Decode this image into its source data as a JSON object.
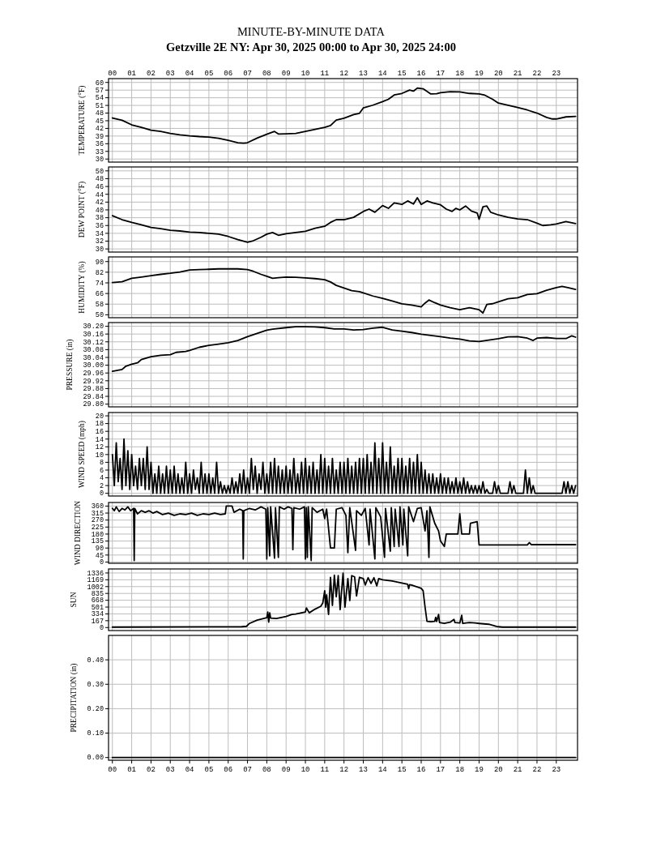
{
  "chart_data": [
    {
      "type": "line",
      "title": "MINUTE-BY-MINUTE DATA",
      "subtitle": "Getzville 2E NY: Apr 30, 2025 00:00 to Apr 30, 2025 24:00",
      "ylabel": "TEMPERATURE (°F)",
      "x": [
        0,
        0.5,
        1,
        1.5,
        2,
        2.5,
        3,
        3.5,
        4,
        4.5,
        5,
        5.5,
        6,
        6.5,
        6.8,
        7,
        7.5,
        8,
        8.4,
        8.6,
        9,
        9.5,
        10,
        10.5,
        11,
        11.3,
        11.6,
        12,
        12.5,
        12.8,
        13,
        13.5,
        14,
        14.3,
        14.6,
        15,
        15.4,
        15.6,
        15.8,
        16.1,
        16.5,
        16.8,
        17,
        17.5,
        18,
        18.5,
        19,
        19.3,
        19.7,
        20,
        20.5,
        21,
        21.5,
        22,
        22.5,
        22.8,
        23,
        23.5,
        24
      ],
      "series": [
        {
          "color": "#000000",
          "values": [
            46.1,
            45.2,
            43.4,
            42.4,
            41.3,
            40.8,
            40.0,
            39.5,
            39.1,
            38.8,
            38.6,
            38.1,
            37.3,
            36.4,
            36.2,
            36.4,
            38.2,
            39.7,
            40.8,
            39.8,
            39.9,
            40.0,
            40.8,
            41.6,
            42.4,
            43.1,
            45.3,
            46.0,
            47.4,
            47.9,
            50.0,
            51.1,
            52.5,
            53.4,
            55.1,
            55.7,
            57.0,
            56.6,
            57.8,
            57.5,
            55.5,
            55.6,
            56.0,
            56.4,
            56.3,
            55.7,
            55.5,
            55.0,
            53.4,
            51.9,
            51.1,
            50.2,
            49.2,
            48.0,
            46.3,
            45.7,
            45.7,
            46.5,
            46.7
          ]
        }
      ],
      "xlim": [
        -0.2,
        24.1
      ],
      "xticks": [
        0,
        1,
        2,
        3,
        4,
        5,
        6,
        7,
        8,
        9,
        10,
        11,
        12,
        13,
        14,
        15,
        16,
        17,
        18,
        19,
        20,
        21,
        22,
        23
      ],
      "x2lim": [
        -0.2,
        24.1
      ],
      "x2ticks": [
        {
          "value": 0,
          "label": "00"
        },
        {
          "value": 1,
          "label": "01"
        },
        {
          "value": 2,
          "label": "02"
        },
        {
          "value": 3,
          "label": "03"
        },
        {
          "value": 4,
          "label": "04"
        },
        {
          "value": 5,
          "label": "05"
        },
        {
          "value": 6,
          "label": "06"
        },
        {
          "value": 7,
          "label": "07"
        },
        {
          "value": 8,
          "label": "08"
        },
        {
          "value": 9,
          "label": "09"
        },
        {
          "value": 10,
          "label": "10"
        },
        {
          "value": 11,
          "label": "11"
        },
        {
          "value": 12,
          "label": "12"
        },
        {
          "value": 13,
          "label": "13"
        },
        {
          "value": 14,
          "label": "14"
        },
        {
          "value": 15,
          "label": "15"
        },
        {
          "value": 16,
          "label": "16"
        },
        {
          "value": 17,
          "label": "17"
        },
        {
          "value": 18,
          "label": "18"
        },
        {
          "value": 19,
          "label": "19"
        },
        {
          "value": 20,
          "label": "20"
        },
        {
          "value": 21,
          "label": "21"
        },
        {
          "value": 22,
          "label": "22"
        },
        {
          "value": 23,
          "label": "23"
        }
      ],
      "ylim": [
        28.8,
        61.5
      ],
      "yticks": [
        30,
        33,
        36,
        39,
        42,
        45,
        48,
        51,
        54,
        57,
        60
      ],
      "grid": true,
      "tick_labels": "y"
    },
    {
      "type": "line",
      "ylabel": "DEW POINT (°F)",
      "x": [
        0,
        0.5,
        1,
        1.5,
        2,
        2.5,
        3,
        3.5,
        4,
        4.5,
        5,
        5.5,
        6,
        6.5,
        7,
        7.3,
        7.7,
        8,
        8.3,
        8.6,
        9,
        9.5,
        10,
        10.5,
        11,
        11.3,
        11.6,
        12,
        12.5,
        13,
        13.3,
        13.6,
        14,
        14.3,
        14.6,
        15,
        15.3,
        15.6,
        15.8,
        16,
        16.3,
        16.6,
        17,
        17.3,
        17.6,
        17.8,
        18,
        18.3,
        18.6,
        18.9,
        19,
        19.2,
        19.4,
        19.6,
        20,
        20.5,
        21,
        21.5,
        22,
        22.3,
        22.7,
        23,
        23.5,
        24
      ],
      "series": [
        {
          "color": "#000000",
          "values": [
            38.5,
            37.5,
            36.8,
            36.2,
            35.5,
            35.2,
            34.8,
            34.6,
            34.3,
            34.2,
            34.0,
            33.8,
            33.2,
            32.4,
            31.7,
            32.1,
            33.0,
            33.8,
            34.2,
            33.5,
            33.9,
            34.2,
            34.5,
            35.3,
            35.8,
            36.8,
            37.5,
            37.5,
            38.1,
            39.6,
            40.2,
            39.4,
            41.1,
            40.4,
            41.8,
            41.4,
            42.3,
            41.5,
            43.1,
            41.4,
            42.3,
            41.8,
            41.3,
            40.2,
            39.6,
            40.4,
            40.0,
            41.0,
            39.7,
            39.2,
            37.6,
            40.8,
            41.0,
            39.4,
            38.7,
            38.1,
            37.7,
            37.5,
            36.6,
            36.0,
            36.2,
            36.4,
            37.0,
            36.5
          ]
        }
      ],
      "xlim": [
        -0.2,
        24.1
      ],
      "xticks": [
        0,
        1,
        2,
        3,
        4,
        5,
        6,
        7,
        8,
        9,
        10,
        11,
        12,
        13,
        14,
        15,
        16,
        17,
        18,
        19,
        20,
        21,
        22,
        23
      ],
      "ylim": [
        29.2,
        51
      ],
      "yticks": [
        30,
        32,
        34,
        36,
        38,
        40,
        42,
        44,
        46,
        48,
        50
      ],
      "grid": true,
      "tick_labels": "y"
    },
    {
      "type": "line",
      "ylabel": "HUMIDITY (%)",
      "x": [
        0,
        0.5,
        1,
        1.5,
        2,
        2.5,
        3,
        3.5,
        4,
        4.5,
        5,
        5.5,
        6,
        6.5,
        7,
        7.3,
        7.7,
        8,
        8.3,
        8.6,
        9,
        9.5,
        10,
        10.5,
        11,
        11.3,
        11.6,
        12,
        12.4,
        12.8,
        13,
        13.5,
        14,
        14.5,
        15,
        15.5,
        16,
        16.2,
        16.4,
        16.7,
        17,
        17.5,
        18,
        18.5,
        19,
        19.2,
        19.4,
        19.7,
        20,
        20.5,
        21,
        21.5,
        22,
        22.5,
        23,
        23.3,
        23.6,
        24
      ],
      "series": [
        {
          "color": "#000000",
          "values": [
            74.2,
            74.9,
            77.4,
            78.4,
            79.4,
            80.4,
            81.2,
            82.2,
            83.7,
            84.0,
            84.2,
            84.5,
            84.5,
            84.5,
            84.0,
            82.7,
            80.4,
            78.9,
            77.4,
            77.9,
            78.4,
            78.2,
            77.7,
            77.2,
            76.4,
            74.7,
            72.1,
            70.1,
            68.1,
            67.4,
            66.4,
            64.1,
            62.3,
            60.3,
            58.3,
            57.3,
            56.0,
            58.8,
            61.1,
            59.1,
            57.3,
            55.3,
            53.8,
            55.3,
            53.8,
            51.3,
            57.8,
            58.3,
            59.8,
            62.1,
            62.8,
            65.3,
            65.8,
            68.4,
            70.4,
            71.4,
            70.4,
            69.1
          ]
        }
      ],
      "xlim": [
        -0.2,
        24.1
      ],
      "xticks": [
        0,
        1,
        2,
        3,
        4,
        5,
        6,
        7,
        8,
        9,
        10,
        11,
        12,
        13,
        14,
        15,
        16,
        17,
        18,
        19,
        20,
        21,
        22,
        23
      ],
      "ylim": [
        47.8,
        93.5
      ],
      "yticks": [
        50,
        58,
        66,
        74,
        82,
        90
      ],
      "grid": true,
      "tick_labels": "y"
    },
    {
      "type": "line",
      "ylabel": "PRESSURE (in)",
      "x": [
        0,
        0.5,
        0.7,
        1,
        1.3,
        1.5,
        2,
        2.5,
        3,
        3.3,
        3.8,
        4,
        4.5,
        5,
        5.5,
        6,
        6.5,
        7,
        7.5,
        8,
        8.3,
        9,
        9.5,
        10,
        10.5,
        11,
        11.5,
        12,
        12.5,
        13,
        13.5,
        14,
        14.5,
        15,
        15.5,
        16,
        16.5,
        17,
        17.5,
        18,
        18.5,
        19,
        19.5,
        20,
        20.5,
        21,
        21.5,
        21.8,
        22,
        22.5,
        23,
        23.5,
        23.8,
        24
      ],
      "series": [
        {
          "color": "#000000",
          "values": [
            29.969,
            29.978,
            29.995,
            30.005,
            30.012,
            30.029,
            30.044,
            30.051,
            30.054,
            30.066,
            30.071,
            30.076,
            30.092,
            30.102,
            30.108,
            30.115,
            30.127,
            30.147,
            30.163,
            30.18,
            30.185,
            30.193,
            30.198,
            30.198,
            30.197,
            30.193,
            30.186,
            30.186,
            30.181,
            30.183,
            30.19,
            30.195,
            30.181,
            30.175,
            30.168,
            30.159,
            30.153,
            30.147,
            30.139,
            30.134,
            30.125,
            30.122,
            30.129,
            30.136,
            30.146,
            30.147,
            30.139,
            30.127,
            30.139,
            30.142,
            30.137,
            30.137,
            30.151,
            30.144
          ]
        }
      ],
      "xlim": [
        -0.2,
        24.1
      ],
      "xticks": [
        0,
        1,
        2,
        3,
        4,
        5,
        6,
        7,
        8,
        9,
        10,
        11,
        12,
        13,
        14,
        15,
        16,
        17,
        18,
        19,
        20,
        21,
        22,
        23
      ],
      "ylim": [
        29.786,
        30.219
      ],
      "yticks": [
        {
          "value": 29.8,
          "label": "29.80"
        },
        {
          "value": 29.84,
          "label": "29.84"
        },
        {
          "value": 29.88,
          "label": "29.88"
        },
        {
          "value": 29.92,
          "label": "29.92"
        },
        {
          "value": 29.96,
          "label": "29.96"
        },
        {
          "value": 30,
          "label": "30.00"
        },
        {
          "value": 30.04,
          "label": "30.04"
        },
        {
          "value": 30.08,
          "label": "30.08"
        },
        {
          "value": 30.12,
          "label": "30.12"
        },
        {
          "value": 30.16,
          "label": "30.16"
        },
        {
          "value": 30.2,
          "label": "30.20"
        }
      ],
      "grid": true,
      "tick_labels": "y"
    },
    {
      "type": "line",
      "ylabel": "WIND SPEED (mph)",
      "x": [
        0,
        0.1,
        0.2,
        0.3,
        0.4,
        0.5,
        0.6,
        0.7,
        0.8,
        0.9,
        1,
        1.1,
        1.2,
        1.3,
        1.4,
        1.5,
        1.6,
        1.7,
        1.8,
        1.9,
        2,
        2.1,
        2.2,
        2.3,
        2.4,
        2.5,
        2.6,
        2.7,
        2.8,
        2.9,
        3,
        3.1,
        3.2,
        3.3,
        3.4,
        3.5,
        3.6,
        3.7,
        3.8,
        3.9,
        4,
        4.1,
        4.2,
        4.3,
        4.4,
        4.5,
        4.6,
        4.7,
        4.8,
        4.9,
        5,
        5.1,
        5.2,
        5.3,
        5.4,
        5.5,
        5.6,
        5.7,
        5.8,
        5.9,
        6,
        6.1,
        6.2,
        6.3,
        6.4,
        6.5,
        6.6,
        6.7,
        6.8,
        6.9,
        7,
        7.1,
        7.2,
        7.3,
        7.4,
        7.5,
        7.6,
        7.7,
        7.8,
        7.9,
        8,
        8.1,
        8.2,
        8.3,
        8.4,
        8.5,
        8.6,
        8.7,
        8.8,
        8.9,
        9,
        9.1,
        9.2,
        9.3,
        9.4,
        9.5,
        9.6,
        9.7,
        9.8,
        9.9,
        10,
        10.1,
        10.2,
        10.3,
        10.4,
        10.5,
        10.6,
        10.7,
        10.8,
        10.9,
        11,
        11.1,
        11.2,
        11.3,
        11.4,
        11.5,
        11.6,
        11.7,
        11.8,
        11.9,
        12,
        12.1,
        12.2,
        12.3,
        12.4,
        12.5,
        12.6,
        12.7,
        12.8,
        12.9,
        13,
        13.1,
        13.2,
        13.3,
        13.4,
        13.5,
        13.6,
        13.7,
        13.8,
        13.9,
        14,
        14.1,
        14.2,
        14.3,
        14.4,
        14.5,
        14.6,
        14.7,
        14.8,
        14.9,
        15,
        15.1,
        15.2,
        15.3,
        15.4,
        15.5,
        15.6,
        15.7,
        15.8,
        15.9,
        16,
        16.1,
        16.2,
        16.3,
        16.4,
        16.5,
        16.6,
        16.7,
        16.8,
        16.9,
        17,
        17.1,
        17.2,
        17.3,
        17.4,
        17.5,
        17.6,
        17.7,
        17.8,
        17.9,
        18,
        18.1,
        18.2,
        18.3,
        18.4,
        18.5,
        18.6,
        18.7,
        18.8,
        18.9,
        19,
        19.1,
        19.2,
        19.3,
        19.4,
        19.5,
        19.6,
        19.7,
        19.8,
        19.9,
        20,
        20.1,
        20.2,
        20.3,
        20.4,
        20.5,
        20.6,
        20.7,
        20.8,
        20.9,
        21,
        21.1,
        21.2,
        21.3,
        21.4,
        21.5,
        21.6,
        21.7,
        21.8,
        21.9,
        22,
        22.1,
        22.2,
        22.3,
        22.4,
        22.5,
        22.6,
        22.7,
        22.8,
        22.9,
        23,
        23.1,
        23.2,
        23.3,
        23.4,
        23.5,
        23.6,
        23.7,
        23.8,
        23.9,
        24
      ],
      "series": [
        {
          "color": "#000000",
          "values": [
            10,
            2,
            13,
            3,
            9,
            1,
            14,
            2,
            11,
            1,
            10,
            2,
            7,
            1,
            9,
            2,
            9,
            1,
            12,
            1,
            8,
            0,
            5,
            0,
            7,
            0,
            5,
            0,
            7,
            0,
            6,
            0,
            7,
            0,
            5,
            0,
            4,
            0,
            8,
            0,
            5,
            0,
            6,
            1,
            4,
            0,
            8,
            0,
            5,
            0,
            5,
            0,
            4,
            0,
            8,
            0,
            3,
            0,
            2,
            0,
            2,
            0,
            4,
            0,
            3,
            0,
            5,
            0,
            6,
            0,
            4,
            0,
            9,
            1,
            7,
            0,
            5,
            1,
            8,
            0,
            5,
            0,
            8,
            0,
            9,
            0,
            7,
            0,
            6,
            0,
            7,
            0,
            6,
            0,
            9,
            0,
            5,
            0,
            8,
            0,
            9,
            0,
            7,
            0,
            8,
            0,
            6,
            0,
            10,
            0,
            9,
            0,
            7,
            0,
            9,
            0,
            6,
            0,
            8,
            0,
            8,
            0,
            9,
            0,
            7,
            0,
            8,
            0,
            9,
            0,
            9,
            0,
            10,
            0,
            8,
            0,
            13,
            0,
            9,
            0,
            13,
            0,
            8,
            0,
            12,
            0,
            7,
            0,
            9,
            0,
            9,
            0,
            7,
            0,
            9,
            0,
            8,
            0,
            10,
            0,
            8,
            0,
            6,
            0,
            5,
            0,
            5,
            0,
            4,
            0,
            5,
            0,
            4,
            0,
            4,
            0,
            3,
            0,
            4,
            0,
            3,
            0,
            4,
            0,
            3,
            0,
            2,
            0,
            2,
            0,
            2,
            0,
            3,
            0,
            1,
            0,
            0,
            0,
            3,
            0,
            2,
            0,
            0,
            0,
            0,
            0,
            3,
            0,
            2,
            0,
            0,
            0,
            0,
            0,
            6,
            0,
            4,
            0,
            2,
            0,
            0,
            0,
            0,
            0,
            0,
            0,
            0,
            0,
            0,
            0,
            0,
            0,
            0,
            0,
            3,
            0,
            3,
            0,
            2,
            0,
            2
          ]
        }
      ],
      "xlim": [
        -0.2,
        24.1
      ],
      "xticks": [
        0,
        1,
        2,
        3,
        4,
        5,
        6,
        7,
        8,
        9,
        10,
        11,
        12,
        13,
        14,
        15,
        16,
        17,
        18,
        19,
        20,
        21,
        22,
        23
      ],
      "ylim": [
        -0.7,
        20.85
      ],
      "yticks": [
        0,
        2,
        4,
        6,
        8,
        10,
        12,
        14,
        16,
        18,
        20
      ],
      "grid": true,
      "tick_labels": "y"
    },
    {
      "type": "line",
      "ylabel": "WIND DIRECTION",
      "x": [
        0,
        0.1,
        0.2,
        0.35,
        0.5,
        0.65,
        0.8,
        0.95,
        1.1,
        1.13,
        1.16,
        1.3,
        1.5,
        1.7,
        1.9,
        2.1,
        2.3,
        2.6,
        2.9,
        3.2,
        3.5,
        3.8,
        4.1,
        4.4,
        4.7,
        5,
        5.3,
        5.6,
        5.85,
        5.9,
        6.2,
        6.3,
        6.6,
        6.75,
        6.78,
        6.81,
        7.1,
        7.4,
        7.7,
        7.95,
        8,
        8.05,
        8.15,
        8.2,
        8.4,
        8.45,
        8.6,
        8.65,
        8.9,
        9.1,
        9.3,
        9.35,
        9.4,
        9.7,
        9.95,
        10,
        10.05,
        10.1,
        10.15,
        10.3,
        10.35,
        10.6,
        10.9,
        11,
        11.1,
        11.3,
        11.5,
        11.6,
        11.9,
        12.1,
        12.2,
        12.3,
        12.6,
        12.65,
        12.9,
        13.1,
        13.3,
        13.35,
        13.6,
        13.65,
        13.9,
        14.1,
        14.15,
        14.4,
        14.45,
        14.6,
        14.65,
        14.85,
        14.9,
        15.05,
        15.1,
        15.3,
        15.35,
        15.6,
        15.8,
        16,
        16.2,
        16.3,
        16.4,
        16.45,
        16.7,
        16.9,
        17,
        17.2,
        17.3,
        17.9,
        18,
        18.1,
        18.5,
        18.55,
        18.9,
        19,
        21.5,
        21.6,
        21.7,
        24
      ],
      "series": [
        {
          "color": "#000000",
          "values": [
            345,
            330,
            355,
            325,
            345,
            335,
            355,
            330,
            345,
            10,
            345,
            310,
            330,
            320,
            330,
            315,
            325,
            305,
            315,
            300,
            310,
            305,
            315,
            300,
            310,
            305,
            315,
            305,
            310,
            360,
            360,
            320,
            340,
            330,
            20,
            330,
            345,
            335,
            355,
            340,
            20,
            350,
            40,
            355,
            25,
            350,
            30,
            355,
            340,
            355,
            345,
            80,
            350,
            340,
            355,
            20,
            350,
            30,
            355,
            10,
            350,
            320,
            340,
            280,
            340,
            90,
            90,
            340,
            350,
            300,
            60,
            350,
            75,
            330,
            300,
            345,
            110,
            340,
            20,
            350,
            290,
            30,
            345,
            70,
            350,
            100,
            340,
            100,
            355,
            110,
            340,
            40,
            355,
            260,
            345,
            350,
            200,
            330,
            30,
            355,
            250,
            200,
            135,
            100,
            180,
            180,
            310,
            180,
            180,
            250,
            260,
            110,
            110,
            125,
            112,
            112
          ]
        }
      ],
      "xlim": [
        -0.2,
        24.1
      ],
      "xticks": [
        0,
        1,
        2,
        3,
        4,
        5,
        6,
        7,
        8,
        9,
        10,
        11,
        12,
        13,
        14,
        15,
        16,
        17,
        18,
        19,
        20,
        21,
        22,
        23
      ],
      "ylim": [
        -8,
        383
      ],
      "yticks": [
        0,
        45,
        90,
        135,
        180,
        225,
        270,
        315,
        360
      ],
      "grid": true,
      "tick_labels": "y"
    },
    {
      "type": "line",
      "ylabel": "SUN",
      "x": [
        0,
        6.7,
        6.95,
        7.1,
        7.5,
        8,
        8.05,
        8.1,
        8.15,
        8.2,
        8.5,
        9,
        9.3,
        9.5,
        10,
        10.05,
        10.2,
        10.5,
        10.8,
        10.9,
        11,
        11.05,
        11.1,
        11.2,
        11.3,
        11.4,
        11.5,
        11.6,
        11.7,
        11.8,
        11.95,
        12.05,
        12.2,
        12.3,
        12.4,
        12.55,
        12.65,
        12.8,
        13,
        13.1,
        13.25,
        13.4,
        13.55,
        13.7,
        13.8,
        14,
        14.5,
        15,
        15.3,
        15.35,
        15.4,
        15.5,
        16,
        16.1,
        16.2,
        16.3,
        16.5,
        16.7,
        16.75,
        16.8,
        16.9,
        16.95,
        17.2,
        17.5,
        17.7,
        17.75,
        18,
        18.1,
        18.15,
        18.5,
        18.8,
        19,
        19.5,
        19.9,
        20,
        20.2,
        24
      ],
      "series": [
        {
          "color": "#000000",
          "values": [
            10,
            20,
            30,
            100,
            180,
            240,
            380,
            130,
            360,
            230,
            220,
            270,
            320,
            330,
            380,
            480,
            360,
            450,
            520,
            600,
            900,
            500,
            800,
            320,
            1230,
            540,
            1280,
            750,
            1270,
            440,
            1330,
            500,
            1200,
            660,
            1270,
            1240,
            770,
            1230,
            1200,
            1040,
            1220,
            1080,
            1220,
            1020,
            1200,
            1170,
            1140,
            1090,
            1060,
            950,
            1050,
            1040,
            960,
            900,
            500,
            150,
            140,
            150,
            250,
            150,
            320,
            120,
            100,
            130,
            200,
            120,
            110,
            300,
            100,
            120,
            110,
            100,
            80,
            30,
            20,
            10,
            10
          ]
        }
      ],
      "xlim": [
        -0.2,
        24.1
      ],
      "xticks": [
        0,
        1,
        2,
        3,
        4,
        5,
        6,
        7,
        8,
        9,
        10,
        11,
        12,
        13,
        14,
        15,
        16,
        17,
        18,
        19,
        20,
        21,
        22,
        23
      ],
      "ylim": [
        -74,
        1434
      ],
      "yticks": [
        0,
        167,
        334,
        501,
        668,
        835,
        1002,
        1169,
        1336
      ],
      "grid": true,
      "tick_labels": "y"
    },
    {
      "type": "line",
      "ylabel": "PRECIPITATION (in)",
      "x": [
        0,
        24
      ],
      "series": [
        {
          "color": "#000000",
          "values": [
            0,
            0
          ]
        }
      ],
      "xlim": [
        -0.2,
        24.1
      ],
      "xticks": [
        {
          "value": 0,
          "label": "00"
        },
        {
          "value": 1,
          "label": "01"
        },
        {
          "value": 2,
          "label": "02"
        },
        {
          "value": 3,
          "label": "03"
        },
        {
          "value": 4,
          "label": "04"
        },
        {
          "value": 5,
          "label": "05"
        },
        {
          "value": 6,
          "label": "06"
        },
        {
          "value": 7,
          "label": "07"
        },
        {
          "value": 8,
          "label": "08"
        },
        {
          "value": 9,
          "label": "09"
        },
        {
          "value": 10,
          "label": "10"
        },
        {
          "value": 11,
          "label": "11"
        },
        {
          "value": 12,
          "label": "12"
        },
        {
          "value": 13,
          "label": "13"
        },
        {
          "value": 14,
          "label": "14"
        },
        {
          "value": 15,
          "label": "15"
        },
        {
          "value": 16,
          "label": "16"
        },
        {
          "value": 17,
          "label": "17"
        },
        {
          "value": 18,
          "label": "18"
        },
        {
          "value": 19,
          "label": "19"
        },
        {
          "value": 20,
          "label": "20"
        },
        {
          "value": 21,
          "label": "21"
        },
        {
          "value": 22,
          "label": "22"
        },
        {
          "value": 23,
          "label": "23"
        }
      ],
      "ylim": [
        -0.011,
        0.5
      ],
      "yticks": [
        {
          "value": 0,
          "label": "0.00"
        },
        {
          "value": 0.1,
          "label": "0.10"
        },
        {
          "value": 0.2,
          "label": "0.20"
        },
        {
          "value": 0.3,
          "label": "0.30"
        },
        {
          "value": 0.4,
          "label": "0.40"
        }
      ],
      "grid": true
    }
  ]
}
